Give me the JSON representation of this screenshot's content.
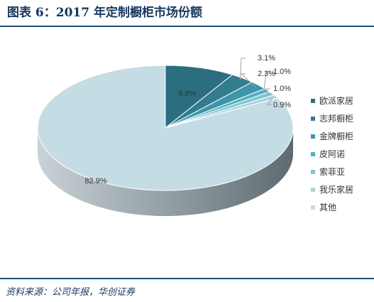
{
  "title": "图表 6：2017 年定制橱柜市场份额",
  "source": "资料来源：公司年报，华创证券",
  "chart_data": {
    "type": "pie",
    "style": "3d",
    "legend_position": "right",
    "categories": [
      "欧派家居",
      "志邦橱柜",
      "金牌橱柜",
      "皮阿诺",
      "索菲亚",
      "我乐家居",
      "其他"
    ],
    "values": [
      8.8,
      3.1,
      2.3,
      1.0,
      1.0,
      0.9,
      82.9
    ],
    "labels": [
      "8.8%",
      "3.1%",
      "2.3%",
      "1.0%",
      "1.0%",
      "0.9%",
      "82.9%"
    ],
    "colors": [
      "#2B6E80",
      "#317C8F",
      "#3E95AA",
      "#55AFC2",
      "#7FC5D2",
      "#A7D3DC",
      "#C4DDE5"
    ],
    "side_colors": [
      "#1E4F5C",
      "#235A68",
      "#2C6B7B",
      "#3D7E8C",
      "#5C8E98",
      "#7A99A0",
      "#8D9DA3"
    ]
  }
}
